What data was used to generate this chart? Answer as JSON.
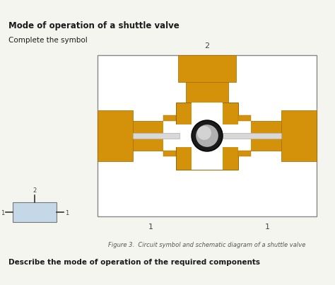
{
  "title": "Mode of operation of a shuttle valve",
  "subtitle": "Complete the symbol",
  "caption": "Figure 3.  Circuit symbol and schematic diagram of a shuttle valve",
  "bottom_text": "Describe the mode of operation of the required components",
  "bg_color": "#f5f5f0",
  "gold": "#D4920A",
  "gold_edge": "#9A6800",
  "silver_light": "#D8D8D8",
  "silver_mid": "#B0B0B0",
  "silver_dark": "#606060",
  "black_ball": "#1a1a1a",
  "symbol_bg": "#c5d8e8",
  "white": "#ffffff",
  "box_edge": "#888888",
  "text_color": "#1a1a1a",
  "label_color": "#444444"
}
